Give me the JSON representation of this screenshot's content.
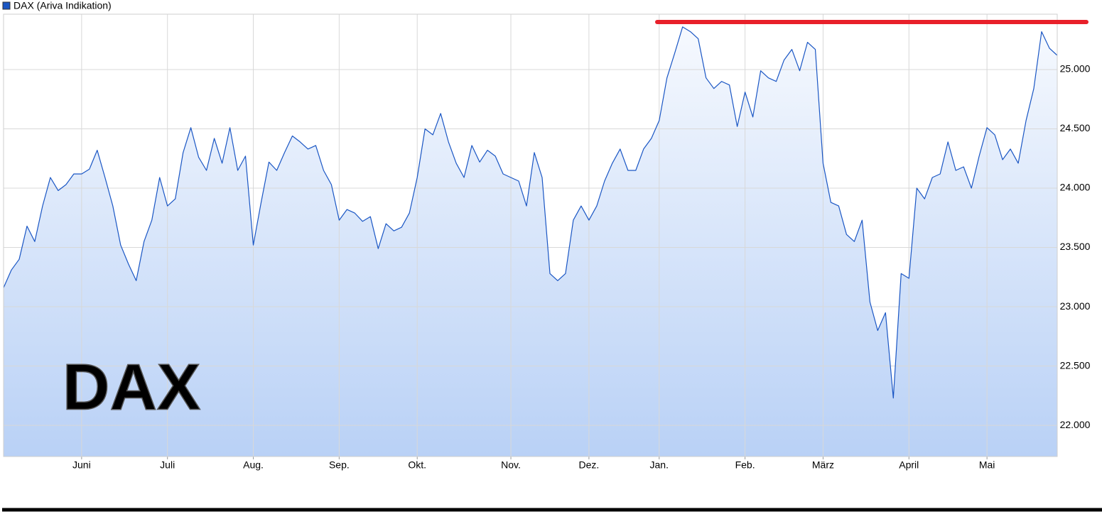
{
  "chart_data": {
    "type": "line",
    "legend": "DAX (Ariva Indikation)",
    "annotation": "DAX",
    "categories": [
      null,
      null,
      null,
      null,
      null,
      null,
      null,
      null,
      null,
      null,
      "Juni",
      null,
      null,
      null,
      null,
      null,
      null,
      null,
      null,
      null,
      null,
      "Juli",
      null,
      null,
      null,
      null,
      null,
      null,
      null,
      null,
      null,
      null,
      "Aug.",
      null,
      null,
      null,
      null,
      null,
      null,
      null,
      null,
      null,
      null,
      "Sep.",
      null,
      null,
      null,
      null,
      null,
      null,
      null,
      null,
      null,
      "Okt.",
      null,
      null,
      null,
      null,
      null,
      null,
      null,
      null,
      null,
      null,
      null,
      "Nov.",
      null,
      null,
      null,
      null,
      null,
      null,
      null,
      null,
      null,
      "Dez.",
      null,
      null,
      null,
      null,
      null,
      null,
      null,
      null,
      "Jan.",
      null,
      null,
      null,
      null,
      null,
      null,
      null,
      null,
      null,
      null,
      "Feb.",
      null,
      null,
      null,
      null,
      null,
      null,
      null,
      null,
      null,
      "März",
      null,
      null,
      null,
      null,
      null,
      null,
      null,
      null,
      null,
      null,
      "April",
      null,
      null,
      null,
      null,
      null,
      null,
      null,
      null,
      null,
      "Mai",
      null,
      null,
      null,
      null,
      null,
      null,
      null,
      null,
      null
    ],
    "series": [
      {
        "name": "DAX (Ariva Indikation)",
        "color": "#1a56c4",
        "values": [
          23160,
          23310,
          23400,
          23680,
          23550,
          23850,
          24090,
          23980,
          24030,
          24120,
          24120,
          24160,
          24320,
          24090,
          23850,
          23520,
          23360,
          23220,
          23550,
          23730,
          24090,
          23850,
          23910,
          24300,
          24510,
          24260,
          24150,
          24420,
          24210,
          24510,
          24150,
          24270,
          23520,
          23880,
          24220,
          24150,
          24300,
          24440,
          24390,
          24330,
          24360,
          24150,
          24030,
          23730,
          23820,
          23790,
          23720,
          23760,
          23490,
          23700,
          23640,
          23670,
          23790,
          24090,
          24500,
          24450,
          24630,
          24390,
          24210,
          24090,
          24360,
          24220,
          24320,
          24270,
          24120,
          24090,
          24060,
          23850,
          24300,
          24090,
          23280,
          23220,
          23280,
          23730,
          23850,
          23730,
          23850,
          24060,
          24210,
          24330,
          24150,
          24150,
          24330,
          24420,
          24570,
          24930,
          25140,
          25360,
          25320,
          25260,
          24930,
          24840,
          24900,
          24870,
          24520,
          24810,
          24600,
          24990,
          24930,
          24900,
          25080,
          25170,
          24990,
          25230,
          25170,
          24210,
          23880,
          23850,
          23610,
          23550,
          23730,
          23040,
          22800,
          22950,
          22230,
          23280,
          23240,
          24000,
          23910,
          24090,
          24120,
          24390,
          24150,
          24180,
          24000,
          24270,
          24510,
          24450,
          24240,
          24330,
          24210,
          24570,
          24840,
          25320,
          25180,
          25120
        ]
      }
    ],
    "ylim": [
      21737,
      25467
    ],
    "yticks": [
      {
        "value": 22000,
        "label": "22.000"
      },
      {
        "value": 22500,
        "label": "22.500"
      },
      {
        "value": 23000,
        "label": "23.000"
      },
      {
        "value": 23500,
        "label": "23.500"
      },
      {
        "value": 24000,
        "label": "24.000"
      },
      {
        "value": 24500,
        "label": "24.500"
      },
      {
        "value": 25000,
        "label": "25.000"
      }
    ],
    "grid": true
  }
}
